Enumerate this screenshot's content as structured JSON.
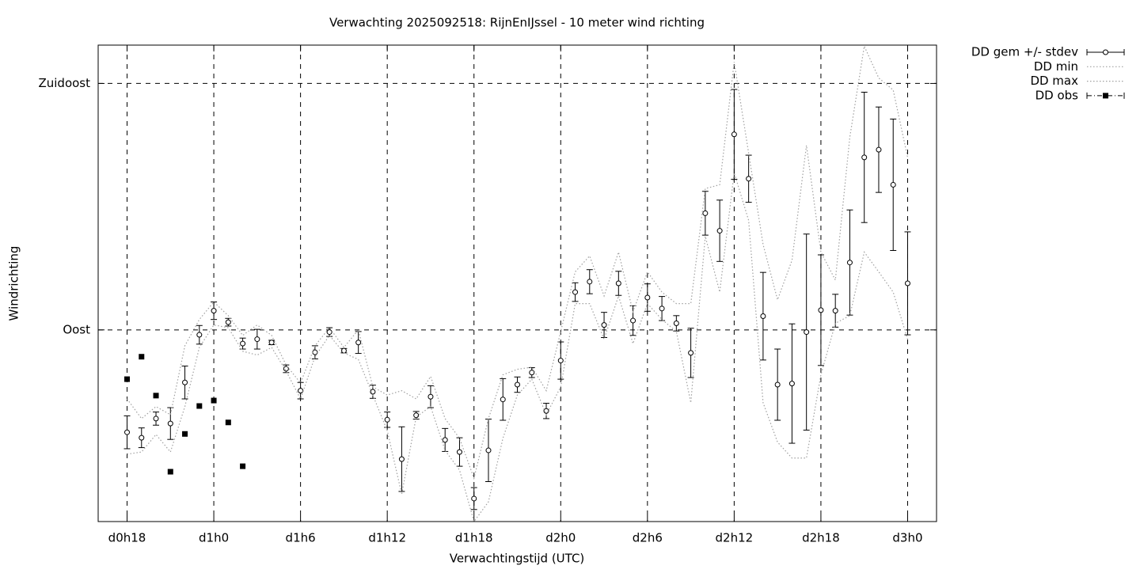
{
  "chart_data": {
    "type": "errorbar",
    "title": "Verwachting 2025092518: RijnEnIJssel - 10 meter wind richting",
    "xlabel": "Verwachtingstijd (UTC)",
    "ylabel": "Windrichting",
    "xlim": [
      16,
      74
    ],
    "ylim": [
      55,
      142
    ],
    "xticks": [
      {
        "value": 18,
        "label": "d0h18"
      },
      {
        "value": 24,
        "label": "d1h0"
      },
      {
        "value": 30,
        "label": "d1h6"
      },
      {
        "value": 36,
        "label": "d1h12"
      },
      {
        "value": 42,
        "label": "d1h18"
      },
      {
        "value": 48,
        "label": "d2h0"
      },
      {
        "value": 54,
        "label": "d2h6"
      },
      {
        "value": 60,
        "label": "d2h12"
      },
      {
        "value": 66,
        "label": "d2h18"
      },
      {
        "value": 72,
        "label": "d3h0"
      }
    ],
    "yticks": [
      {
        "value": 90,
        "label": "Oost"
      },
      {
        "value": 135,
        "label": "Zuidoost"
      }
    ],
    "grid": true,
    "legend": "outside-top-right",
    "x": [
      18,
      19,
      20,
      21,
      22,
      23,
      24,
      25,
      26,
      27,
      28,
      29,
      30,
      31,
      32,
      33,
      34,
      35,
      36,
      37,
      38,
      39,
      40,
      41,
      42,
      43,
      44,
      45,
      46,
      47,
      48,
      49,
      50,
      51,
      52,
      53,
      54,
      55,
      56,
      57,
      58,
      59,
      60,
      61,
      62,
      63,
      64,
      65,
      66,
      67,
      68,
      69,
      70,
      71,
      72
    ],
    "series": [
      {
        "name": "DD gem +/- stdev",
        "color": "#000000",
        "style": "errorbar",
        "values": [
          71.3,
          70.3,
          73.8,
          72.9,
          80.4,
          89.1,
          93.5,
          91.4,
          87.5,
          88.3,
          87.7,
          82.9,
          78.9,
          85.9,
          89.6,
          86.2,
          87.7,
          78.7,
          73.6,
          66.4,
          74.4,
          77.8,
          69.9,
          67.7,
          59.2,
          68.0,
          77.3,
          80.0,
          82.2,
          75.2,
          84.4,
          96.9,
          98.8,
          90.9,
          98.5,
          91.7,
          95.9,
          93.9,
          91.2,
          85.8,
          111.3,
          108.1,
          125.7,
          117.6,
          92.5,
          80.0,
          80.2,
          89.6,
          93.6,
          93.5,
          102.3,
          121.5,
          122.9,
          116.5,
          98.5
        ],
        "errors": [
          3.0,
          1.8,
          1.2,
          2.9,
          3.0,
          1.7,
          1.6,
          0.7,
          1.0,
          1.8,
          0.4,
          0.7,
          1.5,
          1.2,
          0.8,
          0.4,
          2.0,
          1.2,
          1.4,
          5.9,
          0.7,
          2.0,
          2.1,
          2.6,
          2.0,
          5.7,
          3.8,
          1.4,
          0.9,
          1.4,
          3.4,
          1.7,
          2.2,
          2.3,
          2.2,
          2.7,
          2.5,
          2.2,
          1.4,
          4.5,
          4.0,
          5.6,
          8.2,
          4.3,
          8.0,
          6.5,
          10.9,
          17.9,
          10.1,
          3.0,
          9.6,
          11.9,
          7.8,
          12.0,
          9.4
        ]
      },
      {
        "name": "DD min",
        "color": "#a0a0a0",
        "style": "dotted",
        "values": [
          67.3,
          67.7,
          70.9,
          67.7,
          76.0,
          86.8,
          90.9,
          90.4,
          86.1,
          85.4,
          86.8,
          82.5,
          77.4,
          85.1,
          89.0,
          85.8,
          84.6,
          78.1,
          71.6,
          60.0,
          74.1,
          76.0,
          68.0,
          64.4,
          55.0,
          58.6,
          70.2,
          78.1,
          81.0,
          74.5,
          79.6,
          94.8,
          94.8,
          88.3,
          96.2,
          87.5,
          94.8,
          91.9,
          89.7,
          76.7,
          107.1,
          96.9,
          118.7,
          110.0,
          76.7,
          69.5,
          66.6,
          66.6,
          81.8,
          91.2,
          92.6,
          104.2,
          100.6,
          96.9,
          88.3
        ]
      },
      {
        "name": "DD max",
        "color": "#a0a0a0",
        "style": "dotted",
        "values": [
          77.4,
          73.8,
          76.0,
          74.5,
          87.1,
          91.9,
          95.1,
          92.6,
          89.0,
          90.9,
          89.0,
          83.6,
          80.3,
          87.1,
          90.4,
          86.8,
          90.0,
          79.6,
          78.1,
          78.9,
          77.4,
          81.5,
          73.8,
          70.2,
          62.9,
          73.8,
          81.8,
          82.8,
          83.2,
          78.9,
          89.7,
          100.6,
          103.5,
          96.2,
          104.2,
          93.3,
          100.6,
          96.9,
          94.8,
          94.8,
          115.8,
          116.5,
          138.9,
          122.3,
          105.6,
          95.5,
          102.7,
          123.7,
          104.2,
          99.1,
          125.2,
          141.8,
          136.0,
          133.8,
          121.5
        ]
      },
      {
        "name": "DD obs",
        "color": "#000000",
        "style": "points",
        "x": [
          18,
          19,
          20,
          21,
          22,
          23,
          24,
          25,
          26
        ],
        "values": [
          81.0,
          85.1,
          78.0,
          64.1,
          71.0,
          76.1,
          77.1,
          73.1,
          65.1
        ]
      }
    ]
  }
}
